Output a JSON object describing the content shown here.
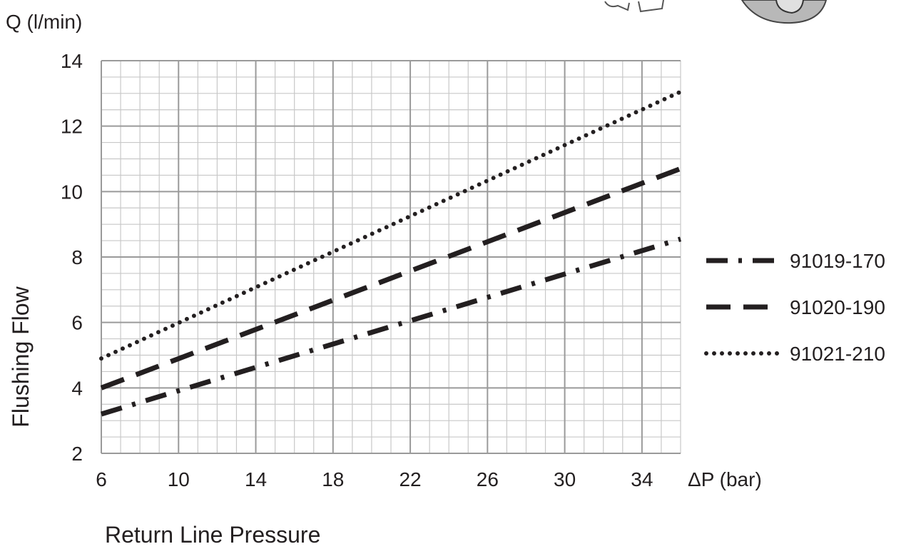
{
  "chart_data": {
    "type": "line",
    "y_unit_label": "Q (l/min)",
    "x_unit_label": "ΔP (bar)",
    "ylabel": "Flushing Flow",
    "xlabel": "Return Line Pressure",
    "xlim": [
      6,
      36
    ],
    "ylim": [
      2,
      14
    ],
    "x_ticks": [
      6,
      10,
      14,
      18,
      22,
      26,
      30,
      34
    ],
    "y_ticks": [
      2,
      4,
      6,
      8,
      10,
      12,
      14
    ],
    "grid": true,
    "legend_position": "right",
    "series": [
      {
        "name": "91019-170",
        "style": "dash-dot",
        "color": "#231f20",
        "x": [
          6,
          36
        ],
        "y": [
          3.2,
          8.55
        ]
      },
      {
        "name": "91020-190",
        "style": "dashed",
        "color": "#231f20",
        "x": [
          6,
          36
        ],
        "y": [
          4.0,
          10.7
        ]
      },
      {
        "name": "91021-210",
        "style": "dotted",
        "color": "#231f20",
        "x": [
          6,
          36
        ],
        "y": [
          4.9,
          13.05
        ]
      }
    ]
  }
}
